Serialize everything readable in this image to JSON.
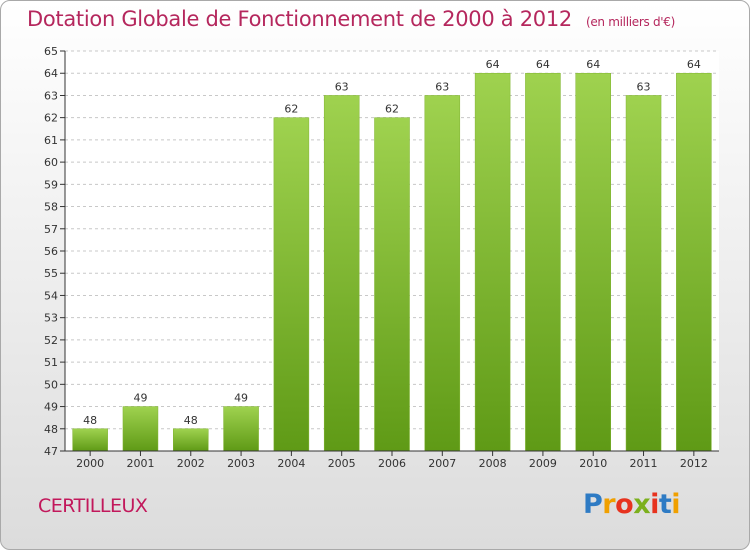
{
  "title": "Dotation Globale de Fonctionnement de 2000 à 2012",
  "unit": "(en milliers d'€)",
  "commune": "CERTILLEUX",
  "logo": [
    "P",
    "r",
    "o",
    "x",
    "i",
    "t",
    "i"
  ],
  "colors": {
    "bar_top": "#9fd24f",
    "bar_bottom": "#5f9a16",
    "title": "#b5275d"
  },
  "chart_data": {
    "type": "bar",
    "categories": [
      "2000",
      "2001",
      "2002",
      "2003",
      "2004",
      "2005",
      "2006",
      "2007",
      "2008",
      "2009",
      "2010",
      "2011",
      "2012"
    ],
    "values": [
      48,
      49,
      48,
      49,
      62,
      63,
      62,
      63,
      64,
      64,
      64,
      63,
      64
    ],
    "ylim": [
      47,
      65
    ],
    "yticks": [
      47,
      48,
      49,
      50,
      51,
      52,
      53,
      54,
      55,
      56,
      57,
      58,
      59,
      60,
      61,
      62,
      63,
      64,
      65
    ],
    "grid": "horizontal-dashed",
    "title": "Dotation Globale de Fonctionnement de 2000 à 2012",
    "ylabel": "",
    "xlabel": ""
  }
}
